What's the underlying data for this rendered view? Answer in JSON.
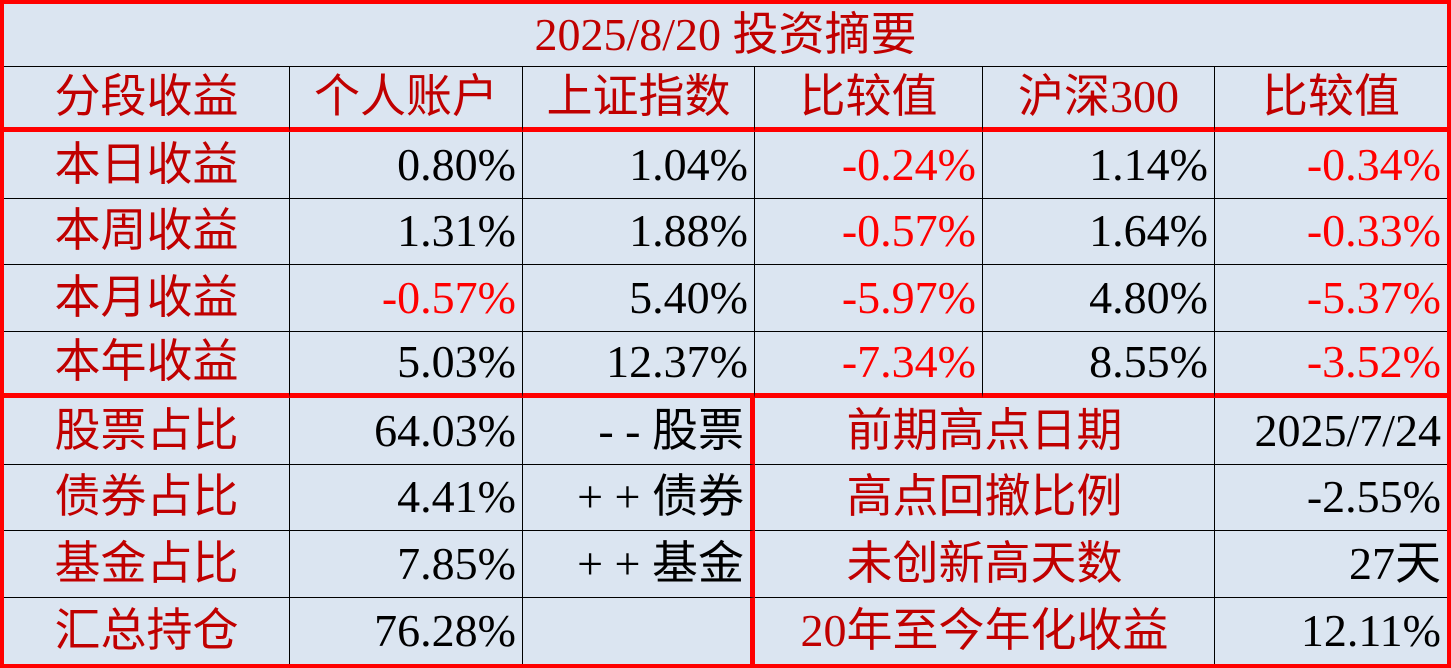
{
  "title": "2025/8/20 投资摘要",
  "colors": {
    "background": "#dbe5f1",
    "label_red": "#c00000",
    "negative_red": "#ff0000",
    "value_black": "#000000",
    "border_red": "#ff0000",
    "gridline_black": "#000000"
  },
  "chart_data": {
    "type": "table",
    "title": "2025/8/20 投资摘要",
    "columns": [
      "分段收益",
      "个人账户",
      "上证指数",
      "比较值",
      "沪深300",
      "比较值"
    ],
    "performance_rows": [
      {
        "label": "本日收益",
        "personal": "0.80%",
        "sse": "1.04%",
        "diff1": "-0.24%",
        "csi300": "1.14%",
        "diff2": "-0.34%"
      },
      {
        "label": "本周收益",
        "personal": "1.31%",
        "sse": "1.88%",
        "diff1": "-0.57%",
        "csi300": "1.64%",
        "diff2": "-0.33%"
      },
      {
        "label": "本月收益",
        "personal": "-0.57%",
        "sse": "5.40%",
        "diff1": "-5.97%",
        "csi300": "4.80%",
        "diff2": "-5.37%"
      },
      {
        "label": "本年收益",
        "personal": "5.03%",
        "sse": "12.37%",
        "diff1": "-7.34%",
        "csi300": "8.55%",
        "diff2": "-3.52%"
      }
    ],
    "allocation_rows": [
      {
        "label": "股票占比",
        "value": "64.03%",
        "note": "- - 股票"
      },
      {
        "label": "债券占比",
        "value": "4.41%",
        "note": "+ + 债券"
      },
      {
        "label": "基金占比",
        "value": "7.85%",
        "note": "+ + 基金"
      },
      {
        "label": "汇总持仓",
        "value": "76.28%",
        "note": ""
      }
    ],
    "summary_rows": [
      {
        "label": "前期高点日期",
        "value": "2025/7/24"
      },
      {
        "label": "高点回撤比例",
        "value": "-2.55%"
      },
      {
        "label": "未创新高天数",
        "value": "27天"
      },
      {
        "label": "20年至今年化收益",
        "value": "12.11%"
      }
    ]
  }
}
